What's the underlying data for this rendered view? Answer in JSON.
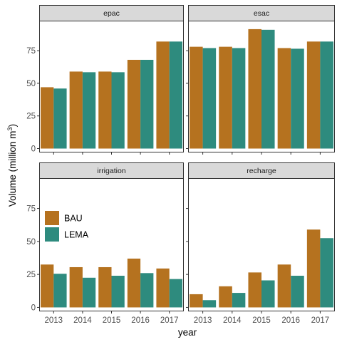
{
  "chart_data": {
    "type": "bar",
    "layout": "facet_wrap 2x2, bars dodged by scenario",
    "xlabel": "year",
    "ylabel": "Volume (million m",
    "ylabel_superscript": "3",
    "ylabel_suffix": ")",
    "categories": [
      "2013",
      "2014",
      "2015",
      "2016",
      "2017"
    ],
    "ylim": [
      -3,
      98
    ],
    "yticks": [
      0,
      25,
      50,
      75
    ],
    "legend": {
      "placement": "inside bottom-left facet",
      "entries": [
        {
          "name": "BAU",
          "color": "#B5721F"
        },
        {
          "name": "LEMA",
          "color": "#2E8B7E"
        }
      ]
    },
    "facets": [
      {
        "name": "epac",
        "series": [
          {
            "name": "BAU",
            "values": [
              47,
              59,
              59,
              68,
              82
            ]
          },
          {
            "name": "LEMA",
            "values": [
              46,
              58.5,
              58.5,
              68,
              82
            ]
          }
        ]
      },
      {
        "name": "esac",
        "series": [
          {
            "name": "BAU",
            "values": [
              78,
              78,
              91.5,
              77,
              82
            ]
          },
          {
            "name": "LEMA",
            "values": [
              77,
              77,
              91,
              76.5,
              82
            ]
          }
        ]
      },
      {
        "name": "irrigation",
        "series": [
          {
            "name": "BAU",
            "values": [
              32.5,
              30.5,
              30.5,
              37,
              29.5
            ]
          },
          {
            "name": "LEMA",
            "values": [
              25.5,
              22.5,
              24,
              26,
              21.5
            ]
          }
        ]
      },
      {
        "name": "recharge",
        "series": [
          {
            "name": "BAU",
            "values": [
              10,
              16,
              26.5,
              32.5,
              59
            ]
          },
          {
            "name": "LEMA",
            "values": [
              5.5,
              11,
              20.5,
              24,
              52.5
            ]
          }
        ]
      }
    ]
  }
}
